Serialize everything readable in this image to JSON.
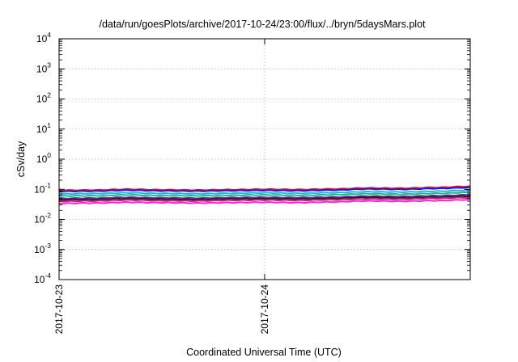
{
  "chart_data": {
    "type": "line",
    "title": "/data/run/goesPlots/archive/2017-10-24/23:00/flux/../bryn/5daysMars.plot",
    "xlabel": "Coordinated Universal Time (UTC)",
    "ylabel": "cSv/day",
    "yscale": "log",
    "ylim": [
      0.0001,
      10000
    ],
    "y_ticks": [
      {
        "base": "10",
        "exp": "4"
      },
      {
        "base": "10",
        "exp": "3"
      },
      {
        "base": "10",
        "exp": "2"
      },
      {
        "base": "10",
        "exp": "1"
      },
      {
        "base": "10",
        "exp": "0"
      },
      {
        "base": "10",
        "exp": "-1"
      },
      {
        "base": "10",
        "exp": "-2"
      },
      {
        "base": "10",
        "exp": "-3"
      },
      {
        "base": "10",
        "exp": "-4"
      }
    ],
    "xlim": [
      "2017-10-23",
      "2017-10-25"
    ],
    "x_ticks": [
      "2017-10-23",
      "2017-10-24"
    ],
    "grid": {
      "x": true,
      "y": true
    },
    "x": [
      "2017-10-23 00:00",
      "2017-10-23 04:00",
      "2017-10-23 08:00",
      "2017-10-23 12:00",
      "2017-10-23 16:00",
      "2017-10-23 20:00",
      "2017-10-24 00:00",
      "2017-10-24 04:00",
      "2017-10-24 08:00",
      "2017-10-24 12:00",
      "2017-10-24 16:00",
      "2017-10-24 20:00",
      "2017-10-25 00:00"
    ],
    "series": [
      {
        "color": "#e8102a",
        "values": [
          0.092,
          0.094,
          0.1,
          0.096,
          0.094,
          0.097,
          0.1,
          0.098,
          0.102,
          0.11,
          0.108,
          0.115,
          0.125
        ]
      },
      {
        "color": "#1a1ae0",
        "values": [
          0.085,
          0.087,
          0.093,
          0.089,
          0.087,
          0.09,
          0.092,
          0.09,
          0.094,
          0.102,
          0.1,
          0.106,
          0.114
        ]
      },
      {
        "color": "#22b4f0",
        "values": [
          0.07,
          0.072,
          0.076,
          0.073,
          0.071,
          0.074,
          0.076,
          0.074,
          0.077,
          0.083,
          0.081,
          0.086,
          0.092
        ]
      },
      {
        "color": "#1db88a",
        "values": [
          0.06,
          0.061,
          0.065,
          0.062,
          0.061,
          0.063,
          0.065,
          0.063,
          0.066,
          0.071,
          0.069,
          0.073,
          0.078
        ]
      },
      {
        "color": "#6a2aa0",
        "values": [
          0.05,
          0.051,
          0.054,
          0.052,
          0.051,
          0.053,
          0.054,
          0.053,
          0.055,
          0.059,
          0.058,
          0.061,
          0.065
        ]
      },
      {
        "color": "#222222",
        "values": [
          0.045,
          0.046,
          0.049,
          0.047,
          0.046,
          0.048,
          0.049,
          0.048,
          0.05,
          0.054,
          0.052,
          0.055,
          0.059
        ]
      },
      {
        "color": "#c8207a",
        "values": [
          0.04,
          0.041,
          0.044,
          0.042,
          0.041,
          0.043,
          0.044,
          0.043,
          0.045,
          0.048,
          0.047,
          0.05,
          0.053
        ]
      },
      {
        "color": "#ff22dd",
        "values": [
          0.034,
          0.035,
          0.037,
          0.036,
          0.035,
          0.036,
          0.037,
          0.036,
          0.038,
          0.041,
          0.04,
          0.042,
          0.045
        ]
      }
    ]
  }
}
